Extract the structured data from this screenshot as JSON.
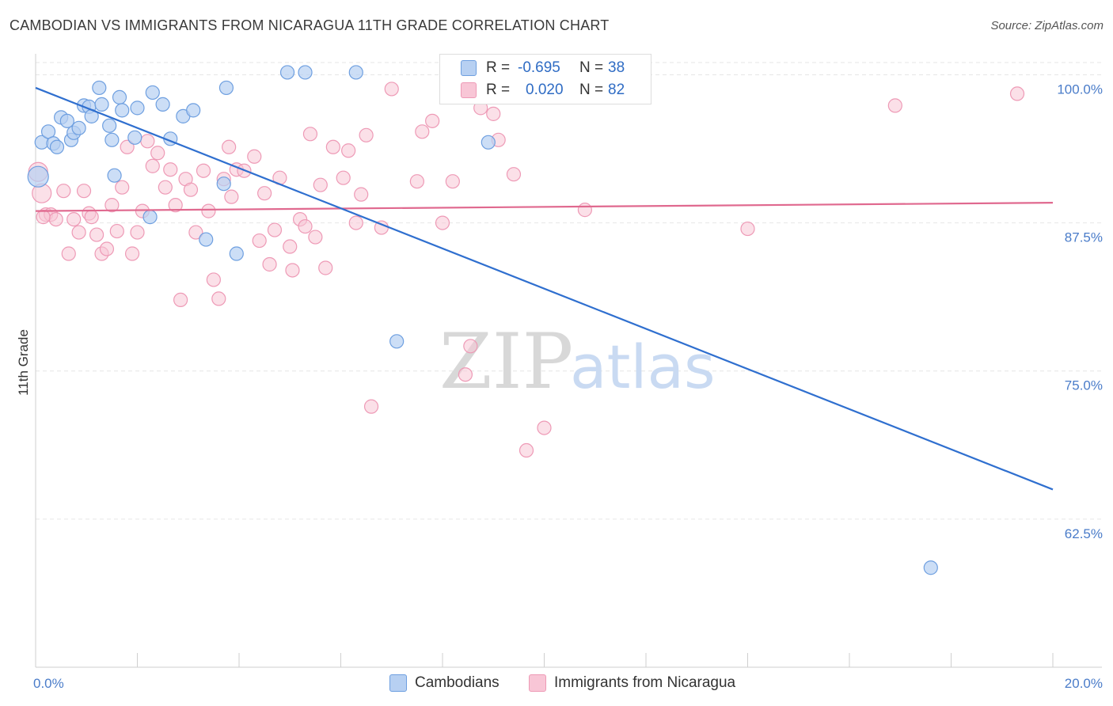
{
  "title": "CAMBODIAN VS IMMIGRANTS FROM NICARAGUA 11TH GRADE CORRELATION CHART",
  "source": "Source: ZipAtlas.com",
  "watermark": {
    "zip": "ZIP",
    "atlas": "atlas"
  },
  "colors": {
    "blue_fill": "#b7d0f2",
    "blue_stroke": "#6e9fe0",
    "blue_line": "#2f6fcf",
    "pink_fill": "#f8c6d6",
    "pink_stroke": "#ee9ab6",
    "pink_line": "#e0698f",
    "grid": "#e6e6e6",
    "tick_text": "#4a7cc9"
  },
  "legend": {
    "rows": [
      {
        "r_label": "R =",
        "r_value": "-0.695",
        "n_label": "N =",
        "n_value": "38"
      },
      {
        "r_label": "R =",
        "r_value": "0.020",
        "n_label": "N =",
        "n_value": "82"
      }
    ]
  },
  "series_legend": {
    "cambodians": "Cambodians",
    "nicaragua": "Immigrants from Nicaragua"
  },
  "chart_data": {
    "type": "scatter",
    "xlabel": "",
    "ylabel": "11th Grade",
    "xlim": [
      0,
      20
    ],
    "ylim": [
      50,
      101.5
    ],
    "x_tick_labels": [
      "0.0%",
      "20.0%"
    ],
    "y_ticks": [
      100,
      87.5,
      75,
      62.5
    ],
    "y_tick_labels": [
      "100.0%",
      "87.5%",
      "75.0%",
      "62.5%"
    ],
    "grid": "horizontal dashed",
    "legend_position": "top-center",
    "series": [
      {
        "name": "Cambodians",
        "trend": {
          "x": [
            0,
            20
          ],
          "y": [
            98.9,
            65.0
          ]
        },
        "points": [
          [
            0.12,
            94.3
          ],
          [
            0.25,
            95.2
          ],
          [
            0.35,
            94.2
          ],
          [
            0.42,
            93.9
          ],
          [
            0.5,
            96.4
          ],
          [
            0.62,
            96.1
          ],
          [
            0.7,
            94.5
          ],
          [
            0.75,
            95.1
          ],
          [
            0.85,
            95.5
          ],
          [
            0.95,
            97.4
          ],
          [
            1.05,
            97.3
          ],
          [
            1.1,
            96.5
          ],
          [
            1.25,
            98.9
          ],
          [
            1.3,
            97.5
          ],
          [
            1.45,
            95.7
          ],
          [
            1.5,
            94.5
          ],
          [
            1.55,
            91.5
          ],
          [
            1.65,
            98.1
          ],
          [
            1.7,
            97.0
          ],
          [
            1.95,
            94.7
          ],
          [
            2.0,
            97.2
          ],
          [
            2.25,
            88.0
          ],
          [
            2.3,
            98.5
          ],
          [
            2.5,
            97.5
          ],
          [
            2.65,
            94.6
          ],
          [
            2.9,
            96.5
          ],
          [
            3.1,
            97.0
          ],
          [
            3.35,
            86.1
          ],
          [
            3.7,
            90.8
          ],
          [
            3.75,
            98.9
          ],
          [
            3.95,
            84.9
          ],
          [
            4.95,
            100.2
          ],
          [
            5.3,
            100.2
          ],
          [
            6.3,
            100.2
          ],
          [
            7.1,
            77.5
          ],
          [
            8.9,
            94.3
          ],
          [
            17.6,
            58.4
          ],
          [
            0.05,
            91.4
          ]
        ]
      },
      {
        "name": "Immigrants from Nicaragua",
        "trend": {
          "x": [
            0,
            20
          ],
          "y": [
            88.5,
            89.2
          ]
        },
        "points": [
          [
            0.05,
            91.8
          ],
          [
            0.12,
            90.0
          ],
          [
            0.2,
            88.2
          ],
          [
            0.3,
            88.2
          ],
          [
            0.4,
            87.8
          ],
          [
            0.55,
            90.2
          ],
          [
            0.65,
            84.9
          ],
          [
            0.75,
            87.8
          ],
          [
            0.85,
            86.7
          ],
          [
            0.95,
            90.2
          ],
          [
            1.05,
            88.3
          ],
          [
            1.1,
            88.0
          ],
          [
            1.2,
            86.5
          ],
          [
            1.3,
            84.9
          ],
          [
            1.4,
            85.3
          ],
          [
            1.5,
            89.0
          ],
          [
            1.6,
            86.8
          ],
          [
            1.7,
            90.5
          ],
          [
            1.8,
            93.9
          ],
          [
            1.9,
            84.9
          ],
          [
            2.0,
            86.7
          ],
          [
            2.1,
            88.5
          ],
          [
            2.2,
            94.4
          ],
          [
            2.3,
            92.3
          ],
          [
            2.4,
            93.4
          ],
          [
            2.55,
            90.5
          ],
          [
            2.65,
            92.0
          ],
          [
            2.75,
            89.0
          ],
          [
            2.85,
            81.0
          ],
          [
            2.95,
            91.2
          ],
          [
            3.05,
            90.3
          ],
          [
            3.15,
            86.7
          ],
          [
            3.3,
            91.9
          ],
          [
            3.4,
            88.5
          ],
          [
            3.5,
            82.7
          ],
          [
            3.6,
            81.1
          ],
          [
            3.7,
            91.2
          ],
          [
            3.8,
            93.9
          ],
          [
            3.85,
            89.7
          ],
          [
            3.95,
            92.0
          ],
          [
            4.1,
            91.9
          ],
          [
            4.3,
            93.1
          ],
          [
            4.4,
            86.0
          ],
          [
            4.5,
            90.0
          ],
          [
            4.6,
            84.0
          ],
          [
            4.7,
            86.9
          ],
          [
            4.8,
            91.3
          ],
          [
            5.0,
            85.5
          ],
          [
            5.05,
            83.5
          ],
          [
            5.2,
            87.8
          ],
          [
            5.3,
            87.2
          ],
          [
            5.4,
            95.0
          ],
          [
            5.5,
            86.3
          ],
          [
            5.6,
            90.7
          ],
          [
            5.7,
            83.7
          ],
          [
            5.85,
            93.9
          ],
          [
            6.05,
            91.3
          ],
          [
            6.15,
            93.6
          ],
          [
            6.3,
            87.5
          ],
          [
            6.4,
            89.9
          ],
          [
            6.5,
            94.9
          ],
          [
            6.6,
            72.0
          ],
          [
            6.8,
            87.1
          ],
          [
            7.0,
            98.8
          ],
          [
            7.5,
            91.0
          ],
          [
            7.6,
            95.2
          ],
          [
            7.8,
            96.1
          ],
          [
            8.0,
            87.5
          ],
          [
            8.2,
            91.0
          ],
          [
            8.45,
            74.7
          ],
          [
            8.55,
            77.1
          ],
          [
            8.75,
            97.2
          ],
          [
            9.0,
            96.7
          ],
          [
            9.1,
            94.5
          ],
          [
            9.4,
            91.6
          ],
          [
            9.65,
            68.3
          ],
          [
            10.0,
            70.2
          ],
          [
            10.8,
            88.6
          ],
          [
            14.0,
            87.0
          ],
          [
            16.9,
            97.4
          ],
          [
            19.3,
            98.4
          ],
          [
            0.15,
            88.0
          ]
        ]
      }
    ]
  }
}
